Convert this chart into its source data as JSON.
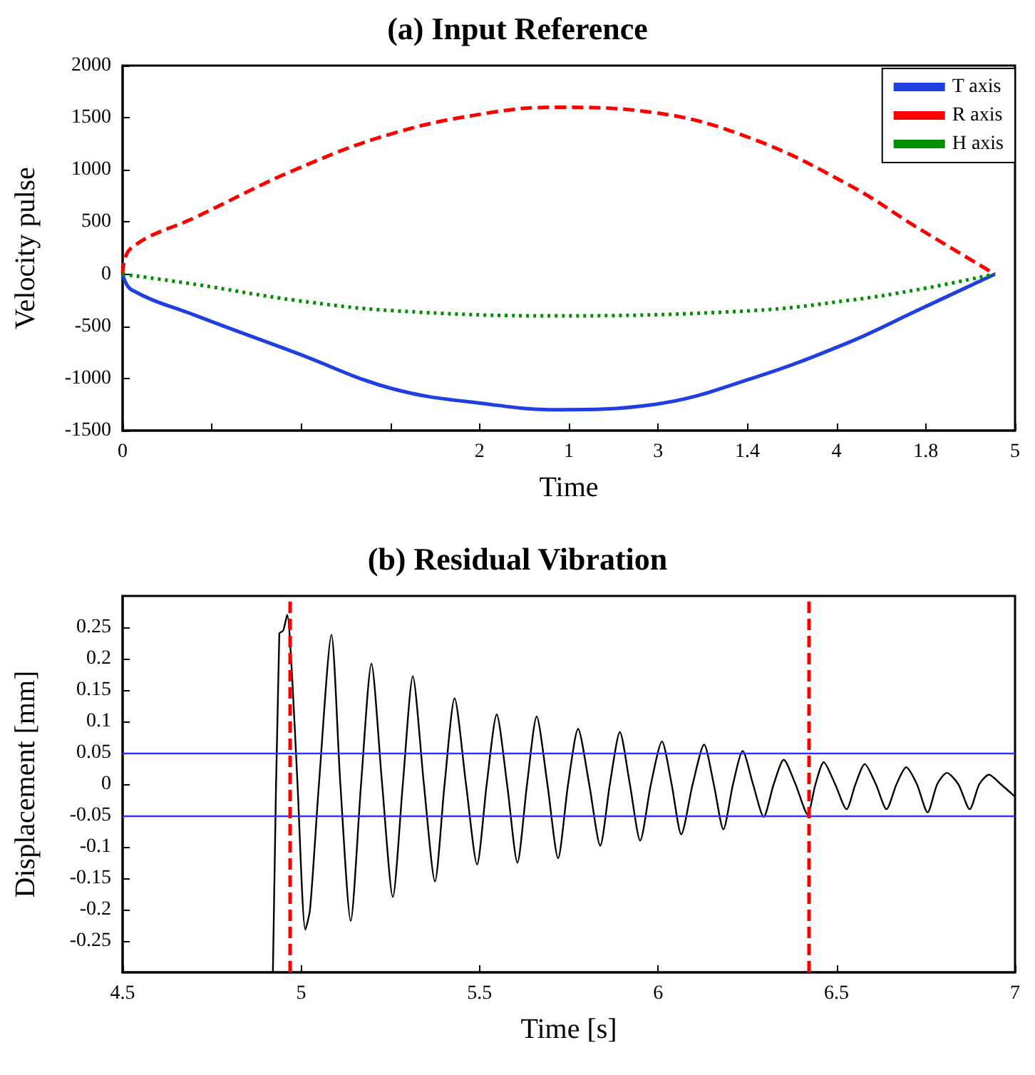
{
  "chart_data": [
    {
      "type": "line",
      "title": "(a) Input Reference",
      "xlabel": "Time",
      "ylabel": "Velocity pulse",
      "legend": "top right",
      "xlim": [
        0,
        2
      ],
      "xticks": [
        0,
        {
          "value": 0.2,
          "label": null
        },
        {
          "value": 0.4,
          "label": null
        },
        {
          "value": 0.6,
          "label": null
        },
        {
          "value": 0.8,
          "label": null
        },
        1,
        {
          "value": 1.2,
          "label": null
        },
        1.4,
        {
          "value": 1.6,
          "label": null
        },
        1.8,
        {
          "value": 2,
          "label": null
        }
      ],
      "x2lim": [
        0,
        5
      ],
      "x2ticks": [
        2,
        3,
        4,
        5
      ],
      "ylim": [
        -1500,
        2000
      ],
      "yticks": [
        -1500,
        -1000,
        -500,
        0,
        500,
        1000,
        1500,
        2000
      ],
      "series": [
        {
          "name": "T axis",
          "color": "#1f3fe0",
          "line_style": "solid",
          "x": [
            0,
            0.02,
            0.166,
            0.386,
            0.606,
            0.826,
            0.97,
            1.19,
            1.41,
            1.63,
            1.78,
            1.955
          ],
          "values": [
            0,
            -150,
            -400,
            -750,
            -1100,
            -1250,
            -1300,
            -1250,
            -1000,
            -650,
            -350,
            0
          ]
        },
        {
          "name": "R axis",
          "color": "#ff0000",
          "line_style": "dashed",
          "x": [
            0,
            0.019,
            0.166,
            0.386,
            0.606,
            0.826,
            0.972,
            1.19,
            1.41,
            1.63,
            1.78,
            1.955
          ],
          "values": [
            0,
            250,
            550,
            1000,
            1350,
            1550,
            1600,
            1550,
            1300,
            850,
            450,
            0
          ]
        },
        {
          "name": "H axis",
          "color": "#008f00",
          "line_style": "dotted",
          "x": [
            0,
            0.166,
            0.386,
            0.606,
            0.97,
            1.41,
            1.63,
            1.78,
            1.955
          ],
          "values": [
            0,
            -100,
            -250,
            -350,
            -400,
            -350,
            -250,
            -150,
            0
          ]
        }
      ]
    },
    {
      "type": "line",
      "title": "(b) Residual Vibration",
      "xlabel": "Time [s]",
      "ylabel": "Displacement [mm]",
      "xlim": [
        4.5,
        7
      ],
      "xticks": [
        4.5,
        5,
        5.5,
        6,
        6.5,
        7
      ],
      "ylim": [
        -0.3,
        0.3
      ],
      "yticks": [
        -0.25,
        -0.2,
        -0.15,
        -0.1,
        -0.05,
        0,
        0.05,
        0.1,
        0.15,
        0.2,
        0.25
      ],
      "ref_lines": [
        {
          "axis": "y",
          "value": 0.05,
          "color": "#3333ff",
          "line_style": "solid"
        },
        {
          "axis": "y",
          "value": -0.05,
          "color": "#3333ff",
          "line_style": "solid"
        },
        {
          "axis": "x",
          "value": 4.968,
          "color": "#ff0000",
          "line_style": "dashed"
        },
        {
          "axis": "x",
          "value": 6.419,
          "color": "#ff0000",
          "line_style": "dashed"
        }
      ],
      "series": [
        {
          "color": "#000000",
          "line_style": "solid",
          "x": [
            4.921,
            4.939,
            4.95,
            4.961,
            4.975,
            4.99,
            5.012,
            5.025,
            5.05,
            5.085,
            5.11,
            5.139,
            5.168,
            5.197,
            5.227,
            5.257,
            5.285,
            5.313,
            5.344,
            5.375,
            5.402,
            5.43,
            5.462,
            5.493,
            5.52,
            5.548,
            5.577,
            5.606,
            5.633,
            5.66,
            5.69,
            5.72,
            5.748,
            5.776,
            5.807,
            5.838,
            5.865,
            5.893,
            5.921,
            5.95,
            5.98,
            6.011,
            6.038,
            6.065,
            6.097,
            6.129,
            6.156,
            6.183,
            6.21,
            6.237,
            6.266,
            6.296,
            6.324,
            6.352,
            6.385,
            6.419,
            6.441,
            6.464,
            6.496,
            6.528,
            6.553,
            6.579,
            6.61,
            6.64,
            6.668,
            6.695,
            6.725,
            6.755,
            6.782,
            6.809,
            6.841,
            6.873,
            6.9,
            6.927,
            6.96,
            7.0
          ],
          "values": [
            -0.3,
            0.24,
            0.245,
            0.27,
            0.17,
            0,
            -0.232,
            -0.2,
            0,
            0.238,
            0,
            -0.218,
            0,
            0.192,
            0,
            -0.18,
            0,
            0.172,
            0,
            -0.155,
            0,
            0.137,
            0,
            -0.128,
            0,
            0.111,
            0,
            -0.125,
            0,
            0.108,
            0,
            -0.118,
            0,
            0.088,
            0,
            -0.098,
            0,
            0.083,
            0,
            -0.09,
            0,
            0.068,
            0,
            -0.08,
            0,
            0.063,
            0,
            -0.072,
            0,
            0.053,
            0,
            -0.052,
            0,
            0.039,
            0,
            -0.048,
            0,
            0.035,
            0,
            -0.04,
            0,
            0.032,
            0,
            -0.04,
            0,
            0.027,
            0,
            -0.045,
            0,
            0.018,
            0,
            -0.04,
            0,
            0.015,
            0,
            -0.02
          ]
        }
      ]
    }
  ]
}
